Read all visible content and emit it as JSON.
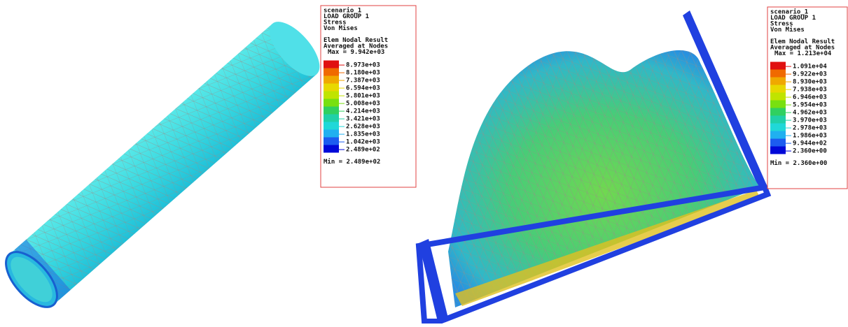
{
  "panels": [
    {
      "legend": {
        "header": [
          "scenario_1",
          "LOAD GROUP 1",
          "Stress",
          "Von Mises"
        ],
        "result": [
          "Elem Nodal Result",
          "Averaged at Nodes"
        ],
        "max": "Max = 9.942e+03",
        "scale": {
          "colors": [
            "#e01010",
            "#f06a00",
            "#f0a800",
            "#e8d800",
            "#c0e400",
            "#78e010",
            "#30d060",
            "#20d0a8",
            "#20d8d8",
            "#20b0f0",
            "#1c5cf0",
            "#0008d8"
          ],
          "labels": [
            "8.973e+03",
            "8.180e+03",
            "7.387e+03",
            "6.594e+03",
            "5.801e+03",
            "5.008e+03",
            "4.214e+03",
            "3.421e+03",
            "2.628e+03",
            "1.835e+03",
            "1.042e+03",
            "2.489e+02"
          ]
        },
        "min": "Min = 2.489e+02"
      }
    },
    {
      "legend": {
        "header": [
          "scenario_1",
          "LOAD GROUP 1",
          "Stress",
          "Von Mises"
        ],
        "result": [
          "Elem Nodal Result",
          "Averaged at Nodes"
        ],
        "max": "Max = 1.213e+04",
        "scale": {
          "colors": [
            "#e01010",
            "#f06a00",
            "#f0a800",
            "#e8d800",
            "#c0e400",
            "#78e010",
            "#30d060",
            "#20d0a8",
            "#20d8d8",
            "#20b0f0",
            "#1c5cf0",
            "#0008d8"
          ],
          "labels": [
            "1.091e+04",
            "9.922e+03",
            "8.930e+03",
            "7.938e+03",
            "6.946e+03",
            "5.954e+03",
            "4.962e+03",
            "3.970e+03",
            "2.978e+03",
            "1.986e+03",
            "9.944e+02",
            "2.360e+00"
          ]
        },
        "min": "Min = 2.360e+00"
      }
    }
  ]
}
